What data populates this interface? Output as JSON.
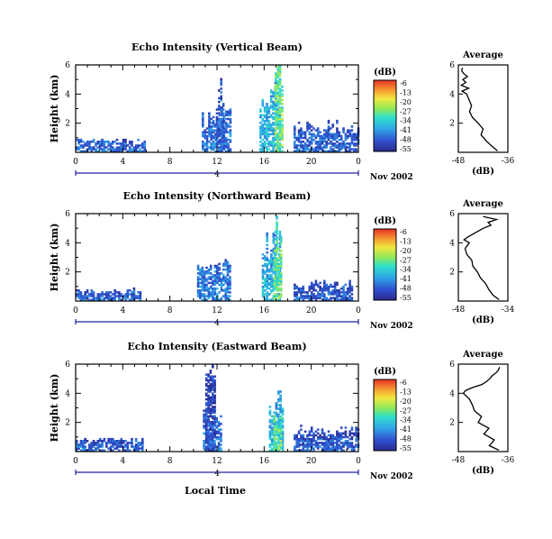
{
  "figure": {
    "xlabel": "Local Time",
    "date_label": "Nov 2002",
    "day_label": "4"
  },
  "chart_data": [
    {
      "type": "heatmap",
      "title": "Echo Intensity (Vertical Beam)",
      "xlabel": "Local Time",
      "ylabel": "Height (km)",
      "xlim": [
        0,
        24
      ],
      "ylim": [
        0,
        6
      ],
      "xticks": [
        "0",
        "4",
        "8",
        "12",
        "16",
        "20",
        "0"
      ],
      "yticks": [
        "2",
        "4",
        "6"
      ],
      "date_label": "Nov 2002",
      "day_label": "4",
      "colorbar": {
        "label": "(dB)",
        "ticks": [
          "-6",
          "-13",
          "-20",
          "-27",
          "-34",
          "-41",
          "-48",
          "-55"
        ],
        "range": [
          -55,
          -6
        ]
      },
      "regions": [
        {
          "x0": 0.0,
          "x1": 5.8,
          "ytop": 0.9,
          "value": -48
        },
        {
          "x0": 10.7,
          "x1": 13.1,
          "ytop": 3.1,
          "value": -47
        },
        {
          "x0": 11.9,
          "x1": 12.5,
          "ytop": 5.3,
          "value": -50
        },
        {
          "x0": 15.6,
          "x1": 17.4,
          "ytop": 5.0,
          "value": -40
        },
        {
          "x0": 16.9,
          "x1": 17.5,
          "ytop": 6.0,
          "value": -30
        },
        {
          "x0": 18.5,
          "x1": 24.0,
          "ytop": 2.2,
          "value": -49
        }
      ],
      "average_profile": {
        "title": "Average",
        "xlabel": "(dB)",
        "xticks": [
          "-48",
          "-36"
        ],
        "xlim": [
          -48,
          -36
        ],
        "yticks": [
          "2",
          "4",
          "6"
        ],
        "ylim": [
          0,
          6
        ],
        "heights": [
          0.1,
          0.4,
          0.8,
          1.2,
          1.6,
          2.0,
          2.4,
          2.8,
          3.2,
          3.6,
          4.0,
          4.2,
          4.4,
          4.6,
          4.8,
          5.0,
          5.2,
          5.4,
          5.6,
          5.8
        ],
        "values": [
          -38.5,
          -39.8,
          -41.3,
          -42.5,
          -42.0,
          -43.2,
          -44.6,
          -45.3,
          -44.8,
          -45.4,
          -46.0,
          -47.1,
          -45.5,
          -47.3,
          -46.2,
          -46.9,
          -45.8,
          -46.7,
          -47.2,
          -47.0
        ]
      }
    },
    {
      "type": "heatmap",
      "title": "Echo Intensity (Northward Beam)",
      "xlabel": "Local Time",
      "ylabel": "Height (km)",
      "xlim": [
        0,
        24
      ],
      "ylim": [
        0,
        6
      ],
      "xticks": [
        "0",
        "4",
        "8",
        "12",
        "16",
        "20",
        "0"
      ],
      "yticks": [
        "2",
        "4",
        "6"
      ],
      "date_label": "Nov 2002",
      "day_label": "4",
      "colorbar": {
        "label": "(dB)",
        "ticks": [
          "-6",
          "-13",
          "-20",
          "-27",
          "-34",
          "-41",
          "-48",
          "-55"
        ],
        "range": [
          -55,
          -6
        ]
      },
      "regions": [
        {
          "x0": 0.0,
          "x1": 5.5,
          "ytop": 0.8,
          "value": -49
        },
        {
          "x0": 10.3,
          "x1": 13.0,
          "ytop": 3.0,
          "value": -46
        },
        {
          "x0": 15.8,
          "x1": 17.4,
          "ytop": 4.9,
          "value": -41
        },
        {
          "x0": 16.8,
          "x1": 17.4,
          "ytop": 6.0,
          "value": -32
        },
        {
          "x0": 18.5,
          "x1": 23.5,
          "ytop": 1.4,
          "value": -50
        }
      ],
      "average_profile": {
        "title": "Average",
        "xlabel": "(dB)",
        "xticks": [
          "-48",
          "-34"
        ],
        "xlim": [
          -48,
          -34
        ],
        "yticks": [
          "2",
          "4",
          "6"
        ],
        "ylim": [
          0,
          6
        ],
        "heights": [
          0.1,
          0.4,
          0.8,
          1.2,
          1.6,
          2.0,
          2.4,
          2.8,
          3.2,
          3.6,
          4.0,
          4.2,
          4.4,
          4.6,
          4.8,
          5.0,
          5.2,
          5.4,
          5.6,
          5.8
        ],
        "values": [
          -36.5,
          -38.2,
          -39.4,
          -40.3,
          -41.8,
          -42.6,
          -43.9,
          -44.2,
          -45.6,
          -46.1,
          -44.9,
          -46.4,
          -45.3,
          -43.8,
          -42.4,
          -40.9,
          -38.8,
          -39.6,
          -37.2,
          -41.0
        ]
      }
    },
    {
      "type": "heatmap",
      "title": "Echo Intensity (Eastward Beam)",
      "xlabel": "Local Time",
      "ylabel": "Height (km)",
      "xlim": [
        0,
        24
      ],
      "ylim": [
        0,
        6
      ],
      "xticks": [
        "0",
        "4",
        "8",
        "12",
        "16",
        "20",
        "0"
      ],
      "yticks": [
        "2",
        "4",
        "6"
      ],
      "date_label": "Nov 2002",
      "day_label": "4",
      "colorbar": {
        "label": "(dB)",
        "ticks": [
          "-6",
          "-13",
          "-20",
          "-27",
          "-34",
          "-41",
          "-48",
          "-55"
        ],
        "range": [
          -55,
          -6
        ]
      },
      "regions": [
        {
          "x0": 0.0,
          "x1": 5.6,
          "ytop": 0.9,
          "value": -49
        },
        {
          "x0": 10.8,
          "x1": 12.3,
          "ytop": 2.8,
          "value": -47
        },
        {
          "x0": 11.0,
          "x1": 11.8,
          "ytop": 5.9,
          "value": -52
        },
        {
          "x0": 16.4,
          "x1": 17.5,
          "ytop": 4.3,
          "value": -40
        },
        {
          "x0": 16.8,
          "x1": 17.5,
          "ytop": 2.6,
          "value": -30
        },
        {
          "x0": 18.5,
          "x1": 24.0,
          "ytop": 1.8,
          "value": -50
        }
      ],
      "average_profile": {
        "title": "Average",
        "xlabel": "(dB)",
        "xticks": [
          "-48",
          "-36"
        ],
        "xlim": [
          -48,
          -36
        ],
        "yticks": [
          "2",
          "4",
          "6"
        ],
        "ylim": [
          0,
          6
        ],
        "heights": [
          0.1,
          0.4,
          0.8,
          1.2,
          1.6,
          2.0,
          2.4,
          2.8,
          3.2,
          3.6,
          4.0,
          4.2,
          4.4,
          4.6,
          4.8,
          5.0,
          5.2,
          5.4,
          5.6,
          5.8
        ],
        "values": [
          -38.2,
          -40.5,
          -39.3,
          -41.8,
          -40.6,
          -43.2,
          -42.4,
          -44.1,
          -44.6,
          -45.3,
          -46.8,
          -46.2,
          -44.5,
          -42.3,
          -41.2,
          -40.4,
          -39.8,
          -38.9,
          -38.3,
          -38.0
        ]
      }
    }
  ]
}
